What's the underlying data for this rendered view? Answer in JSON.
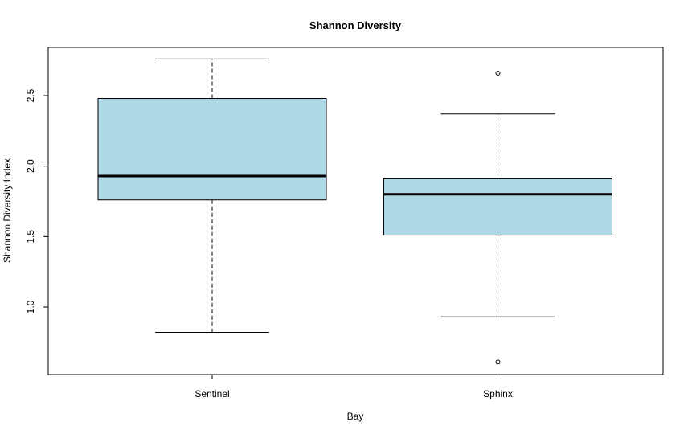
{
  "chart_data": {
    "type": "boxplot",
    "title": "Shannon Diversity",
    "xlabel": "Bay",
    "ylabel": "Shannon Diversity Index",
    "categories": [
      "Sentinel",
      "Sphinx"
    ],
    "ylim": [
      0.55,
      2.8
    ],
    "yticks": [
      1.0,
      1.5,
      2.0,
      2.5
    ],
    "ytick_labels": [
      "1.0",
      "1.5",
      "2.0",
      "2.5"
    ],
    "boxes": [
      {
        "category": "Sentinel",
        "whisker_low": 0.82,
        "q1": 1.76,
        "median": 1.93,
        "q3": 2.48,
        "whisker_high": 2.76,
        "outliers": []
      },
      {
        "category": "Sphinx",
        "whisker_low": 0.93,
        "q1": 1.51,
        "median": 1.8,
        "q3": 1.91,
        "whisker_high": 2.37,
        "outliers": [
          2.66,
          0.61
        ]
      }
    ],
    "box_color": "#add8e6",
    "grid": false,
    "legend": "none"
  }
}
